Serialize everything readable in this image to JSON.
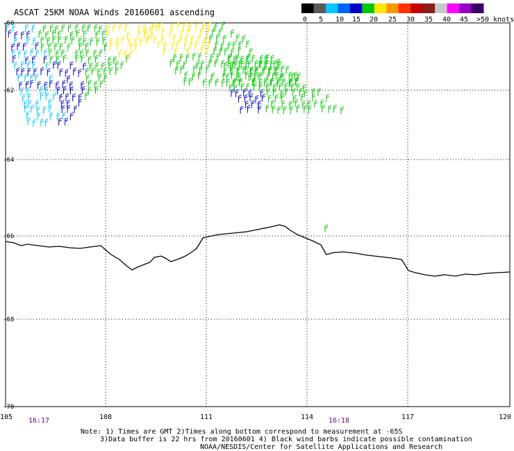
{
  "title": "ASCAT 25KM NOAA Winds 20160601 ascending",
  "legend": {
    "labels": [
      "0",
      "5",
      "10",
      "15",
      "20",
      "25",
      "30",
      "35",
      "40",
      "45",
      ">50 knots"
    ],
    "colors": [
      "#000000",
      "#5a5a5a",
      "#00c8ff",
      "#0064ff",
      "#0000c8",
      "#00c800",
      "#ffe600",
      "#ff9600",
      "#ff3200",
      "#c80000",
      "#8c1e1e",
      "#c8c8c8",
      "#ff00ff",
      "#9600c8",
      "#3c0064"
    ]
  },
  "axes": {
    "lat_labels": [
      "-60",
      "-62",
      "-64",
      "-66",
      "-68",
      "-70"
    ],
    "lon_labels": [
      "105",
      "108",
      "111",
      "114",
      "117",
      "120"
    ],
    "lat_range": [
      -70,
      -60
    ],
    "lon_range": [
      105,
      120
    ]
  },
  "times": [
    "16:17",
    "16:18"
  ],
  "time_color": "#6a008a",
  "notes": [
    "Note: 1) Times are GMT 2)Times along bottom correspond to measurement at -65S",
    "3)Data buffer is 22 hrs from 20160601 4) Black wind barbs indicate possible contamination",
    "NOAA/NESDIS/Center for Satellite Applications and Research"
  ],
  "barb_colors": {
    "light": "#00c8ff",
    "medium": "#0000c8",
    "strong": "#00c800",
    "high": "#ffe600"
  }
}
